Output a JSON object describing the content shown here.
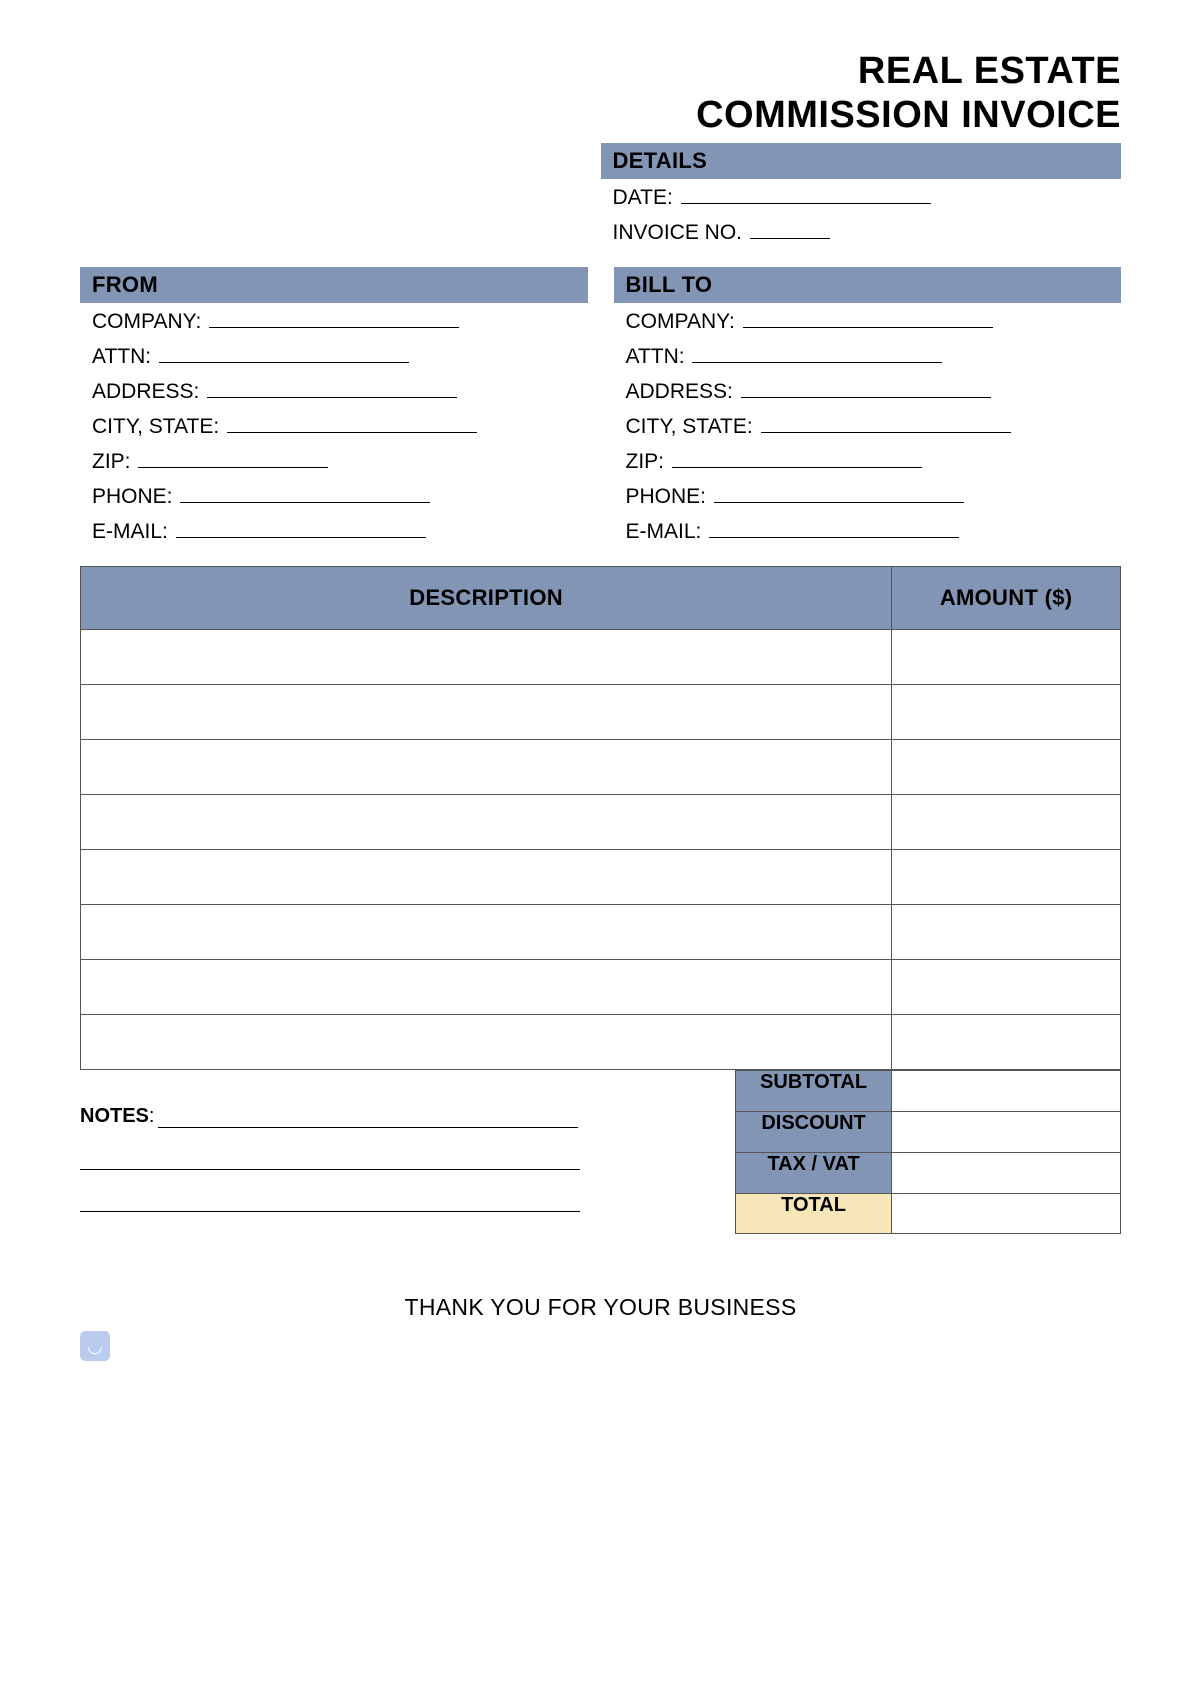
{
  "title": {
    "line1": "REAL ESTATE",
    "line2": "COMMISSION INVOICE"
  },
  "colors": {
    "header_bg": "#8295b5",
    "total_bg": "#f7e6b8",
    "border": "#555555",
    "text": "#000000",
    "page_bg": "#ffffff",
    "stamp_bg": "#9db6e8"
  },
  "typography": {
    "title_fontsize": 38,
    "title_weight": 900,
    "section_fontsize": 22,
    "field_fontsize": 21,
    "totals_fontsize": 20,
    "thanks_fontsize": 23,
    "font_family": "Arial"
  },
  "sections": {
    "details": {
      "header": "DETAILS",
      "fields": [
        {
          "label": "DATE:",
          "blank_width": 250
        },
        {
          "label": "INVOICE NO.",
          "blank_width": 80
        }
      ]
    },
    "from": {
      "header": "FROM",
      "fields": [
        {
          "label": "COMPANY:",
          "blank_width": 250
        },
        {
          "label": "ATTN:",
          "blank_width": 250
        },
        {
          "label": "ADDRESS:",
          "blank_width": 250
        },
        {
          "label": "CITY, STATE:",
          "blank_width": 250
        },
        {
          "label": "ZIP:",
          "blank_width": 190
        },
        {
          "label": "PHONE:",
          "blank_width": 250
        },
        {
          "label": "E-MAIL:",
          "blank_width": 250
        }
      ]
    },
    "bill_to": {
      "header": "BILL TO",
      "fields": [
        {
          "label": "COMPANY:",
          "blank_width": 250
        },
        {
          "label": "ATTN:",
          "blank_width": 250
        },
        {
          "label": "ADDRESS:",
          "blank_width": 250
        },
        {
          "label": "CITY, STATE:",
          "blank_width": 250
        },
        {
          "label": "ZIP:",
          "blank_width": 250
        },
        {
          "label": "PHONE:",
          "blank_width": 250
        },
        {
          "label": "E-MAIL:",
          "blank_width": 250
        }
      ]
    }
  },
  "items_table": {
    "columns": [
      {
        "label": "DESCRIPTION",
        "key": "desc",
        "width_pct": 78
      },
      {
        "label": "AMOUNT ($)",
        "key": "amt",
        "width_pct": 22
      }
    ],
    "rows": [
      {
        "desc": "",
        "amt": ""
      },
      {
        "desc": "",
        "amt": ""
      },
      {
        "desc": "",
        "amt": ""
      },
      {
        "desc": "",
        "amt": ""
      },
      {
        "desc": "",
        "amt": ""
      },
      {
        "desc": "",
        "amt": ""
      },
      {
        "desc": "",
        "amt": ""
      },
      {
        "desc": "",
        "amt": ""
      }
    ]
  },
  "totals": [
    {
      "label": "SUBTOTAL",
      "value": "",
      "highlight": false
    },
    {
      "label": "DISCOUNT",
      "value": "",
      "highlight": false
    },
    {
      "label": "TAX / VAT",
      "value": "",
      "highlight": false
    },
    {
      "label": "TOTAL",
      "value": "",
      "highlight": true
    }
  ],
  "notes": {
    "label": "NOTES",
    "colon": ":",
    "extra_lines": 2
  },
  "footer": {
    "thanks": "THANK YOU FOR YOUR BUSINESS"
  },
  "stamp_glyph": "◡"
}
